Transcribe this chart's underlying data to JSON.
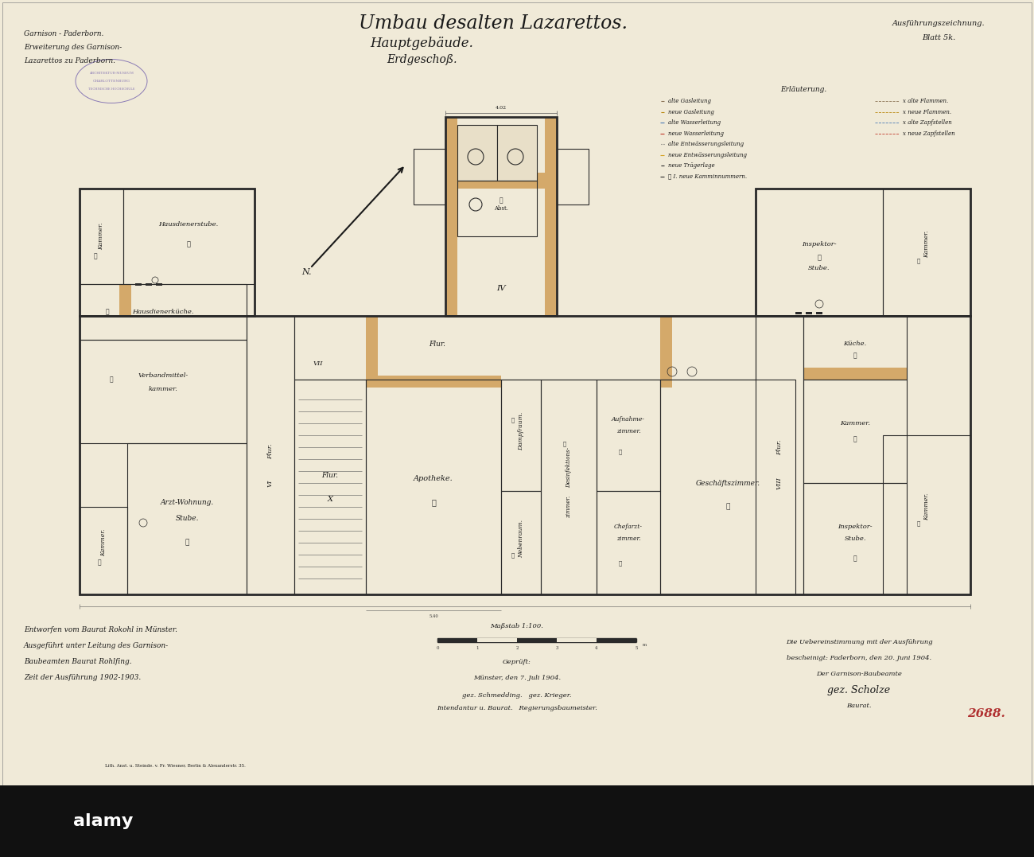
{
  "bg_color": "#f0ead8",
  "paper_color": "#f0ead8",
  "line_color": "#2a2a2a",
  "wall_color": "#2a2a2a",
  "highlight_color": "#d4a96a",
  "blue_color": "#7a9ab5",
  "red_color": "#c0392b",
  "stamp_color": "#8a7ab5",
  "border_color": "#aaaaaa",
  "title_main": "Umbau desalten Lazarettos.",
  "title_sub1": "Hauptgebäude.",
  "title_sub2": "Erdgeschoß.",
  "top_left_line1": "Garnison - Paderborn.",
  "top_left_line2": "Erweiterung des Garnison-",
  "top_left_line3": "Lazarettos zu Paderborn.",
  "top_right_line1": "Ausführungszeichnung.",
  "top_right_line2": "Blatt 5k.",
  "legend_title": "Erläuterung.",
  "bottom_left_lines": [
    "Entworfen vom Baurat Rokohl in Münster.",
    "Ausgeführt unter Leitung des Garnison-",
    "Baubeamten Baurat Rohlfing.",
    "Zeit der Ausführung 1902-1903."
  ],
  "scale_text": "Maßstab 1:100.",
  "printer_text": "Lith. Anst. u. Steinde. v. Fr. Wiesner, Berlin & Alexanderstr. 35.",
  "bottom_center_lines": [
    "Geprüft:",
    "Münster, den 7. Juli 1904.",
    "gez. Schmedding.   gez. Krieger.",
    "Intendantur u. Baurat.   Regierungsbaumeister."
  ],
  "bottom_right_lines": [
    "Die Uebereinstimmung mit der Ausführung",
    "bescheinigt: Paderborn, den 20. Juni 1904.",
    "Der Garnison-Baubeamte",
    "gez. Scholze",
    "Baurat."
  ],
  "number_ref": "2688."
}
